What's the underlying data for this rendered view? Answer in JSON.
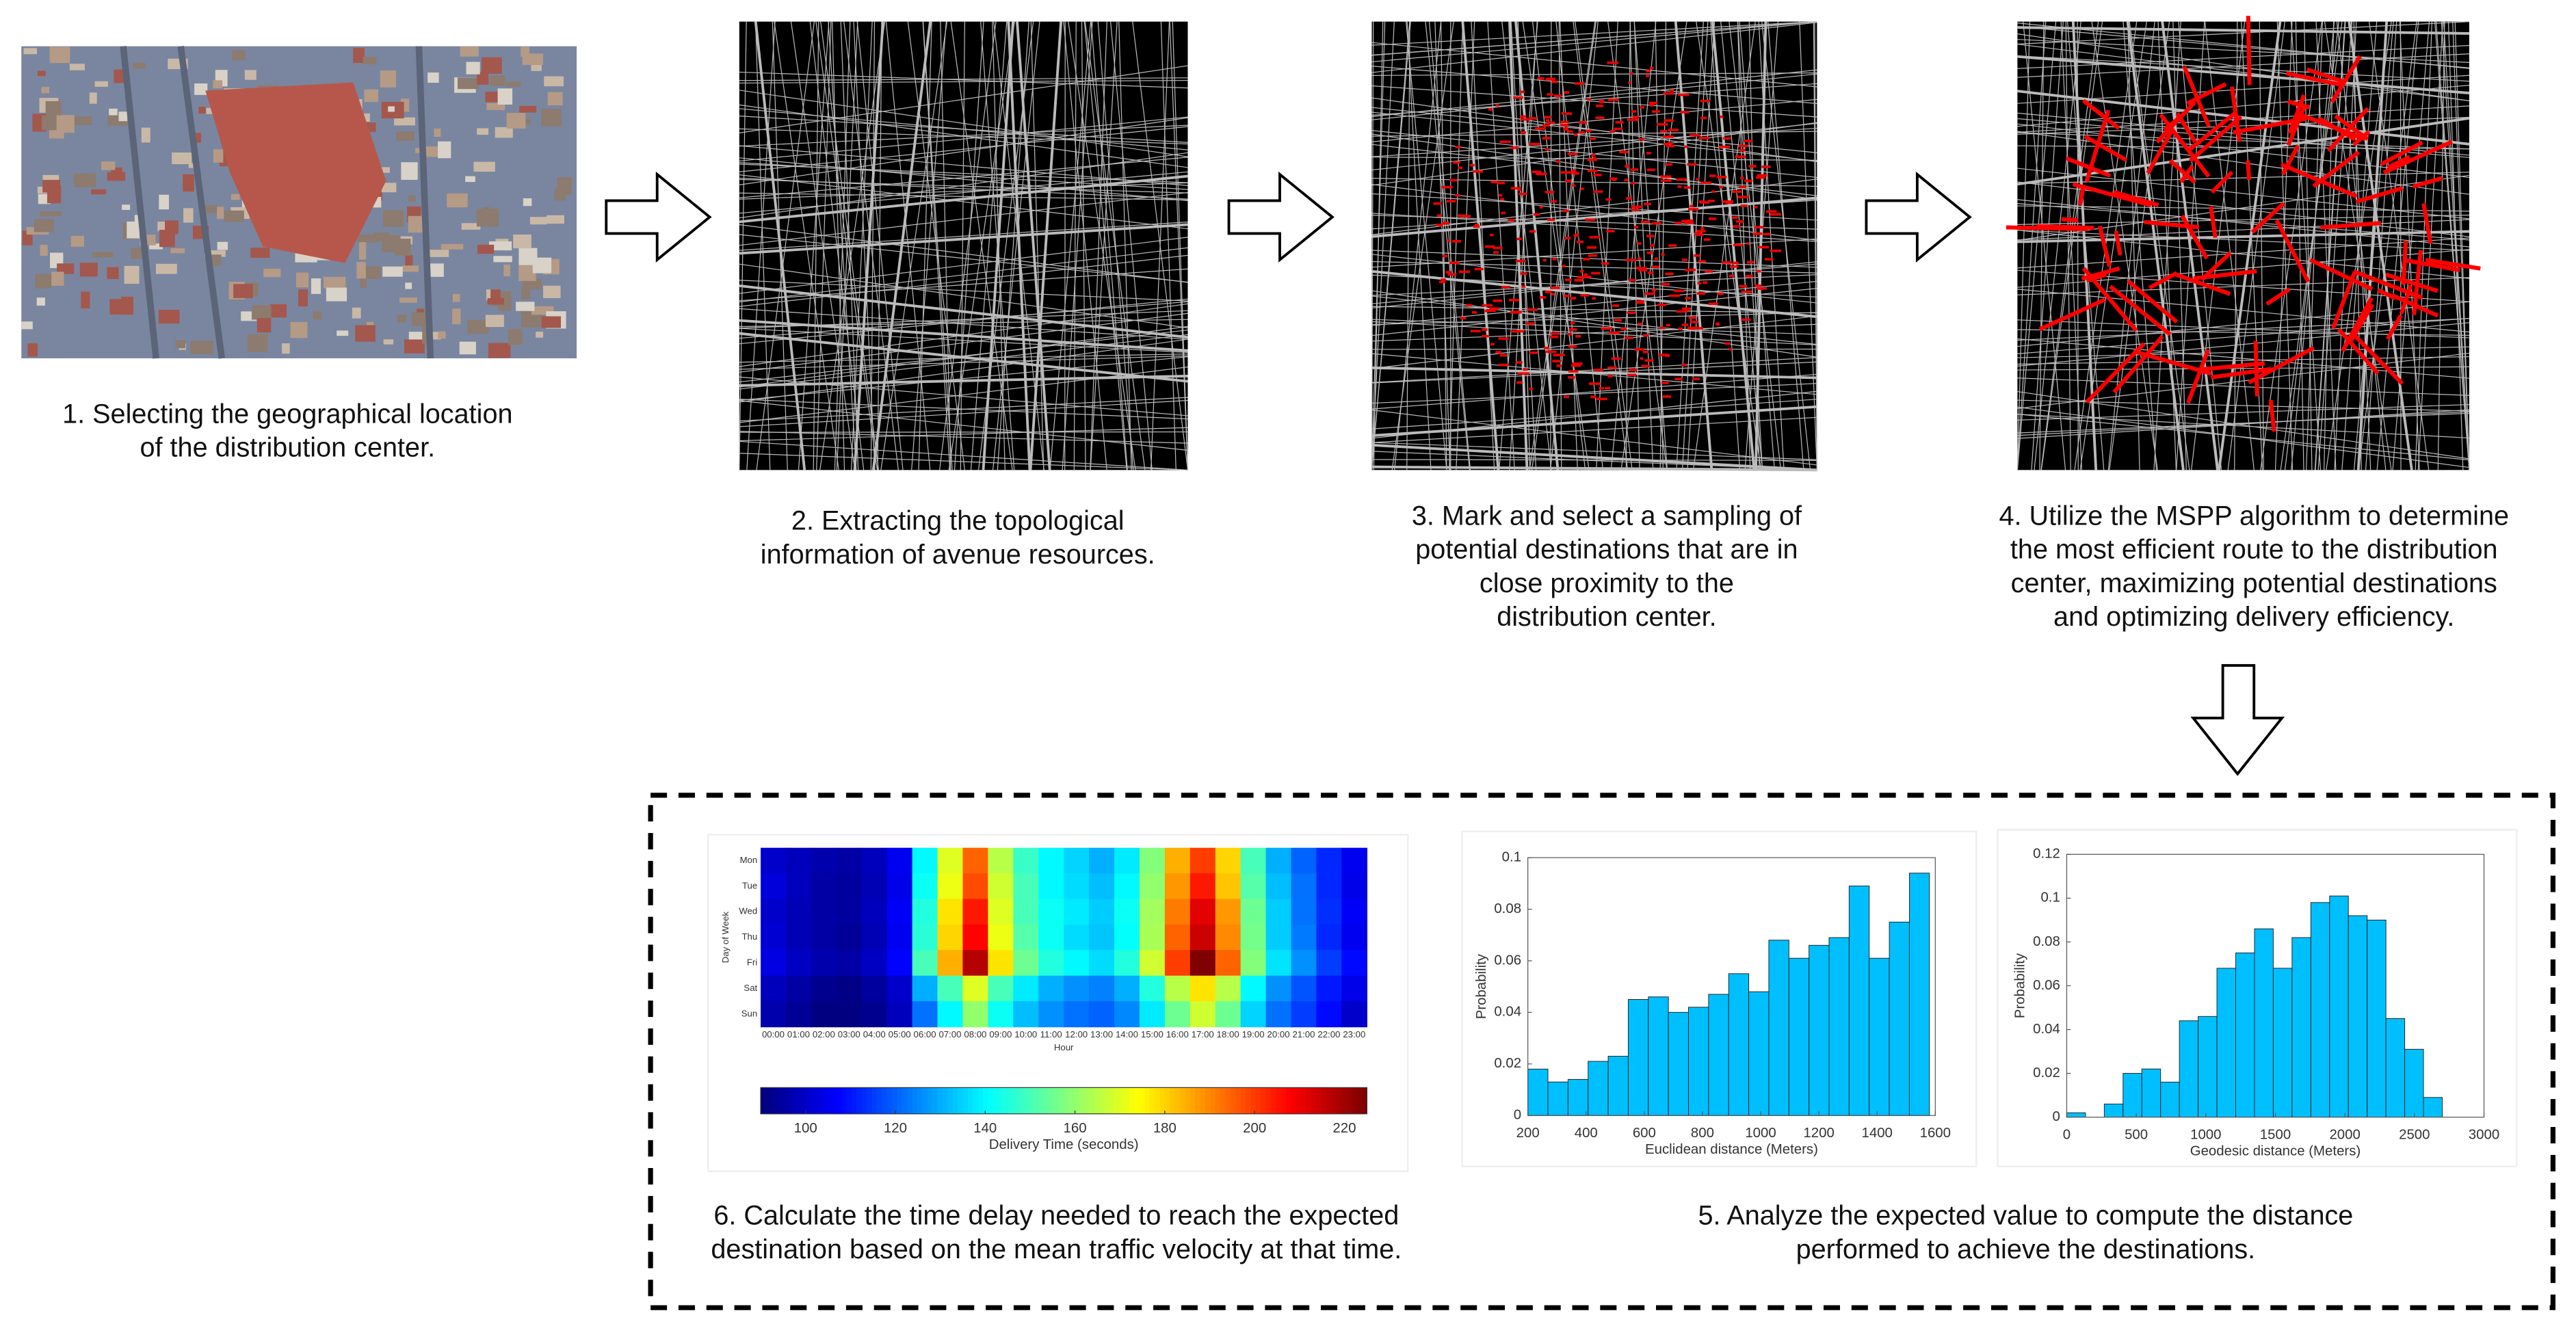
{
  "steps": [
    {
      "lines": [
        "1. Selecting the geographical location",
        "of the distribution center."
      ]
    },
    {
      "lines": [
        "2. Extracting the topological",
        "information of avenue resources."
      ]
    },
    {
      "lines": [
        "3. Mark and select a sampling of",
        "potential destinations that are in",
        "close proximity to the",
        "distribution center."
      ]
    },
    {
      "lines": [
        "4. Utilize the MSPP algorithm to determine",
        "the most efficient route to the distribution",
        "center, maximizing potential destinations",
        "and optimizing delivery efficiency."
      ]
    },
    {
      "lines": [
        "5. Analyze the expected value to compute the distance",
        "performed to achieve the destinations."
      ]
    },
    {
      "lines": [
        "6. Calculate the time delay needed to reach the  expected",
        "destination based on the mean traffic velocity at that time."
      ]
    }
  ],
  "chart_data": [
    {
      "type": "heatmap",
      "x_label": "Hour",
      "y_label": "Day of Week",
      "x_categories": [
        "00:00",
        "01:00",
        "02:00",
        "03:00",
        "04:00",
        "05:00",
        "06:00",
        "07:00",
        "08:00",
        "09:00",
        "10:00",
        "11:00",
        "12:00",
        "13:00",
        "14:00",
        "15:00",
        "16:00",
        "17:00",
        "18:00",
        "19:00",
        "20:00",
        "21:00",
        "22:00",
        "23:00"
      ],
      "y_categories": [
        "Mon",
        "Tue",
        "Wed",
        "Thu",
        "Fri",
        "Sat",
        "Sun"
      ],
      "values": [
        [
          100,
          98,
          96,
          95,
          98,
          105,
          140,
          170,
          195,
          165,
          148,
          140,
          135,
          130,
          138,
          158,
          185,
          200,
          180,
          150,
          130,
          120,
          112,
          105
        ],
        [
          102,
          98,
          95,
          94,
          97,
          104,
          142,
          172,
          198,
          168,
          150,
          140,
          136,
          132,
          140,
          160,
          188,
          205,
          182,
          152,
          132,
          122,
          112,
          104
        ],
        [
          100,
          97,
          95,
          94,
          98,
          106,
          145,
          178,
          205,
          170,
          150,
          142,
          138,
          134,
          142,
          162,
          192,
          212,
          188,
          155,
          134,
          122,
          113,
          106
        ],
        [
          101,
          97,
          95,
          93,
          97,
          105,
          146,
          180,
          208,
          172,
          152,
          142,
          136,
          133,
          141,
          163,
          195,
          215,
          190,
          156,
          134,
          123,
          112,
          105
        ],
        [
          103,
          99,
          96,
          95,
          99,
          107,
          150,
          185,
          218,
          178,
          155,
          145,
          140,
          136,
          145,
          168,
          200,
          225,
          195,
          158,
          137,
          126,
          115,
          108
        ],
        [
          98,
          95,
          92,
          91,
          94,
          100,
          130,
          150,
          170,
          150,
          138,
          130,
          126,
          124,
          130,
          145,
          165,
          178,
          165,
          140,
          126,
          118,
          110,
          104
        ],
        [
          96,
          93,
          90,
          90,
          92,
          98,
          122,
          140,
          160,
          142,
          132,
          126,
          122,
          120,
          125,
          138,
          155,
          168,
          155,
          135,
          122,
          115,
          108,
          100
        ]
      ],
      "colormap": "jet",
      "clim": [
        90,
        225
      ],
      "colorbar_label": "Delivery Time (seconds)",
      "colorbar_ticks": [
        100,
        120,
        140,
        160,
        180,
        200,
        220
      ]
    },
    {
      "type": "histogram",
      "x_label": "Euclidean distance (Meters)",
      "y_label": "Probability",
      "color": "#00bfff",
      "bins": [
        200,
        269,
        338,
        407,
        476,
        545,
        614,
        683,
        752,
        821,
        890,
        959,
        1028,
        1097,
        1166,
        1235,
        1304,
        1373,
        1442,
        1511,
        1580
      ],
      "values": [
        0.018,
        0.013,
        0.014,
        0.021,
        0.023,
        0.045,
        0.046,
        0.04,
        0.042,
        0.047,
        0.055,
        0.048,
        0.068,
        0.061,
        0.066,
        0.069,
        0.089,
        0.061,
        0.075,
        0.094
      ],
      "xlim": [
        200,
        1600
      ],
      "xticks": [
        200,
        400,
        600,
        800,
        1000,
        1200,
        1400,
        1600
      ],
      "ylim": [
        0,
        0.1
      ],
      "yticks": [
        0,
        0.02,
        0.04,
        0.06,
        0.08,
        0.1
      ]
    },
    {
      "type": "histogram",
      "x_label": "Geodesic distance (Meters)",
      "y_label": "Probability",
      "color": "#00bfff",
      "bins": [
        0,
        135,
        270,
        405,
        540,
        675,
        810,
        945,
        1080,
        1215,
        1350,
        1485,
        1620,
        1755,
        1890,
        2025,
        2160,
        2295,
        2430,
        2565,
        2700
      ],
      "values": [
        0.002,
        0,
        0.006,
        0.02,
        0.022,
        0.016,
        0.044,
        0.046,
        0.068,
        0.075,
        0.086,
        0.068,
        0.082,
        0.098,
        0.101,
        0.092,
        0.09,
        0.045,
        0.031,
        0.009
      ],
      "xlim": [
        0,
        3000
      ],
      "xticks": [
        0,
        500,
        1000,
        1500,
        2000,
        2500,
        3000
      ],
      "ylim": [
        0,
        0.12
      ],
      "yticks": [
        0,
        0.02,
        0.04,
        0.06,
        0.08,
        0.1,
        0.12
      ]
    }
  ]
}
